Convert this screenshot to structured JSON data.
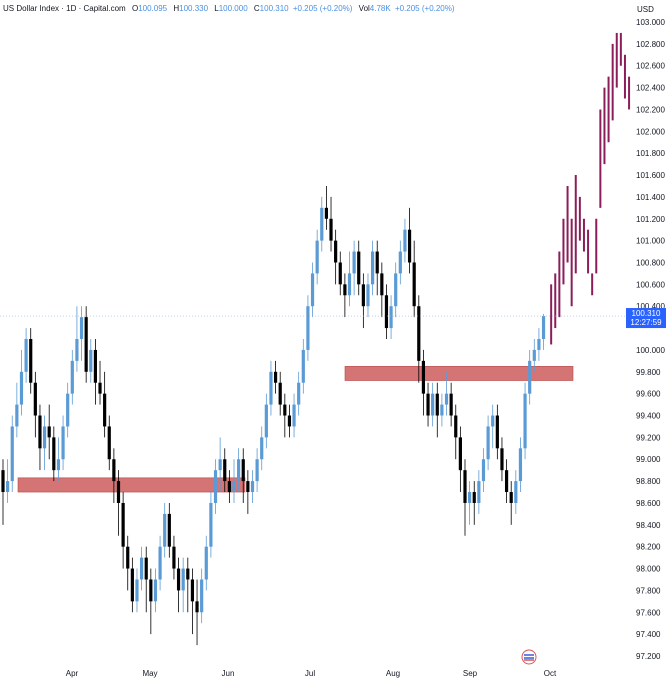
{
  "legend": {
    "symbol": "US Dollar Index · 1D · Capital.com",
    "open_label": "O",
    "open": "100.095",
    "high_label": "H",
    "high": "100.330",
    "low_label": "L",
    "low": "100.000",
    "close_label": "C",
    "close": "100.310",
    "change": "+0.205 (+0.20%)",
    "vol_label": "Vol",
    "vol": "4.78K",
    "vol_change": "+0.205 (+0.20%)"
  },
  "chart_data": {
    "type": "candlestick",
    "title": "",
    "currency": "USD",
    "ylim": [
      97.2,
      103.0
    ],
    "y_ticks": [
      "103.000",
      "102.800",
      "102.600",
      "102.400",
      "102.200",
      "102.000",
      "101.800",
      "101.600",
      "101.400",
      "101.200",
      "101.000",
      "100.800",
      "100.600",
      "100.400",
      "100.000",
      "99.800",
      "99.600",
      "99.400",
      "99.200",
      "99.000",
      "98.800",
      "98.600",
      "98.400",
      "98.200",
      "98.000",
      "97.800",
      "97.600",
      "97.400",
      "97.200"
    ],
    "x_ticks": [
      "Apr",
      "May",
      "Jun",
      "Jul",
      "Aug",
      "Sep",
      "Oct"
    ],
    "last_price": "100.310",
    "countdown": "12:27:59",
    "colors": {
      "up": "#5b9bd5",
      "down": "#000000",
      "projection": "#8b1e5a",
      "zone": "#cd5c5c",
      "price_label": "#2962ff"
    },
    "zones": [
      {
        "low": 98.7,
        "high": 98.83,
        "from": "Mar 4",
        "to": "Jun 3"
      },
      {
        "low": 99.72,
        "high": 99.85,
        "from": "Jul 16",
        "to": "Sep 30"
      }
    ],
    "candles": [
      [
        98.9,
        98.7,
        99.0,
        98.4
      ],
      [
        98.7,
        98.8,
        99.0,
        98.6
      ],
      [
        98.8,
        99.3,
        99.4,
        98.7
      ],
      [
        99.3,
        99.5,
        99.7,
        99.2
      ],
      [
        99.5,
        99.8,
        100.0,
        99.4
      ],
      [
        99.8,
        100.1,
        100.2,
        99.7
      ],
      [
        100.1,
        99.7,
        100.2,
        99.6
      ],
      [
        99.7,
        99.4,
        99.8,
        99.2
      ],
      [
        99.4,
        99.1,
        99.5,
        98.9
      ],
      [
        99.1,
        99.3,
        99.4,
        98.9
      ],
      [
        99.3,
        99.2,
        99.5,
        99.0
      ],
      [
        99.2,
        98.9,
        99.3,
        98.8
      ],
      [
        98.9,
        99.0,
        99.2,
        98.8
      ],
      [
        99.0,
        99.3,
        99.4,
        98.9
      ],
      [
        99.3,
        99.6,
        99.7,
        99.2
      ],
      [
        99.6,
        99.9,
        100.0,
        99.5
      ],
      [
        99.9,
        100.1,
        100.4,
        99.8
      ],
      [
        100.1,
        100.3,
        100.4,
        99.9
      ],
      [
        100.3,
        99.8,
        100.4,
        99.7
      ],
      [
        99.8,
        100.0,
        100.1,
        99.7
      ],
      [
        100.0,
        99.7,
        100.1,
        99.5
      ],
      [
        99.7,
        99.6,
        99.9,
        99.5
      ],
      [
        99.6,
        99.3,
        99.8,
        99.2
      ],
      [
        99.3,
        99.0,
        99.4,
        98.9
      ],
      [
        99.0,
        98.8,
        99.1,
        98.6
      ],
      [
        98.8,
        98.6,
        98.9,
        98.3
      ],
      [
        98.6,
        98.2,
        98.7,
        98.0
      ],
      [
        98.2,
        98.0,
        98.3,
        97.8
      ],
      [
        98.0,
        97.7,
        98.1,
        97.6
      ],
      [
        97.7,
        97.9,
        98.0,
        97.6
      ],
      [
        97.9,
        98.1,
        98.2,
        97.8
      ],
      [
        98.1,
        97.9,
        98.2,
        97.6
      ],
      [
        97.9,
        97.7,
        98.0,
        97.4
      ],
      [
        97.7,
        97.9,
        98.0,
        97.6
      ],
      [
        97.9,
        98.2,
        98.3,
        97.8
      ],
      [
        98.2,
        98.5,
        98.6,
        98.1
      ],
      [
        98.5,
        98.2,
        98.6,
        98.1
      ],
      [
        98.2,
        98.0,
        98.3,
        97.9
      ],
      [
        98.0,
        97.8,
        98.1,
        97.6
      ],
      [
        97.8,
        98.0,
        98.1,
        97.6
      ],
      [
        98.0,
        97.9,
        98.1,
        97.6
      ],
      [
        97.9,
        97.7,
        98.0,
        97.4
      ],
      [
        97.7,
        97.6,
        97.9,
        97.3
      ],
      [
        97.6,
        97.9,
        98.0,
        97.5
      ],
      [
        97.9,
        98.2,
        98.3,
        97.8
      ],
      [
        98.2,
        98.6,
        98.7,
        98.1
      ],
      [
        98.6,
        98.9,
        99.0,
        98.5
      ],
      [
        98.9,
        99.0,
        99.2,
        98.7
      ],
      [
        99.0,
        98.8,
        99.1,
        98.7
      ],
      [
        98.8,
        98.7,
        98.9,
        98.6
      ],
      [
        98.7,
        98.8,
        99.0,
        98.6
      ],
      [
        98.8,
        99.0,
        99.1,
        98.7
      ],
      [
        99.0,
        98.8,
        99.1,
        98.6
      ],
      [
        98.8,
        98.7,
        98.9,
        98.5
      ],
      [
        98.7,
        98.8,
        98.9,
        98.6
      ],
      [
        98.8,
        99.0,
        99.1,
        98.7
      ],
      [
        99.0,
        99.2,
        99.3,
        98.9
      ],
      [
        99.2,
        99.5,
        99.6,
        99.1
      ],
      [
        99.5,
        99.8,
        99.9,
        99.4
      ],
      [
        99.8,
        99.7,
        99.9,
        99.6
      ],
      [
        99.7,
        99.5,
        99.8,
        99.4
      ],
      [
        99.5,
        99.4,
        99.6,
        99.2
      ],
      [
        99.4,
        99.3,
        99.5,
        99.2
      ],
      [
        99.3,
        99.5,
        99.6,
        99.2
      ],
      [
        99.5,
        99.7,
        99.8,
        99.4
      ],
      [
        99.7,
        100.0,
        100.1,
        99.6
      ],
      [
        100.0,
        100.4,
        100.5,
        99.9
      ],
      [
        100.4,
        100.7,
        100.8,
        100.3
      ],
      [
        100.7,
        101.0,
        101.1,
        100.6
      ],
      [
        101.0,
        101.3,
        101.4,
        100.9
      ],
      [
        101.3,
        101.2,
        101.5,
        101.1
      ],
      [
        101.2,
        101.0,
        101.4,
        100.9
      ],
      [
        101.0,
        100.8,
        101.1,
        100.6
      ],
      [
        100.8,
        100.6,
        100.9,
        100.5
      ],
      [
        100.6,
        100.5,
        100.7,
        100.3
      ],
      [
        100.5,
        100.7,
        100.9,
        100.4
      ],
      [
        100.7,
        100.9,
        101.0,
        100.5
      ],
      [
        100.9,
        100.6,
        101.0,
        100.5
      ],
      [
        100.6,
        100.4,
        100.7,
        100.2
      ],
      [
        100.4,
        100.6,
        100.7,
        100.3
      ],
      [
        100.6,
        100.9,
        101.0,
        100.5
      ],
      [
        100.9,
        100.7,
        101.0,
        100.5
      ],
      [
        100.7,
        100.5,
        100.8,
        100.3
      ],
      [
        100.5,
        100.2,
        100.6,
        100.1
      ],
      [
        100.2,
        100.4,
        100.5,
        100.1
      ],
      [
        100.4,
        100.7,
        100.8,
        100.3
      ],
      [
        100.7,
        100.9,
        101.0,
        100.6
      ],
      [
        100.9,
        101.1,
        101.2,
        100.8
      ],
      [
        101.1,
        100.8,
        101.3,
        100.7
      ],
      [
        100.8,
        100.4,
        101.0,
        100.3
      ],
      [
        100.4,
        99.9,
        100.5,
        99.7
      ],
      [
        99.9,
        99.6,
        100.0,
        99.4
      ],
      [
        99.6,
        99.4,
        99.7,
        99.3
      ],
      [
        99.4,
        99.6,
        99.7,
        99.3
      ],
      [
        99.6,
        99.4,
        99.7,
        99.2
      ],
      [
        99.4,
        99.5,
        99.6,
        99.3
      ],
      [
        99.5,
        99.6,
        99.8,
        99.4
      ],
      [
        99.6,
        99.4,
        99.7,
        99.3
      ],
      [
        99.4,
        99.2,
        99.5,
        99.0
      ],
      [
        99.2,
        98.9,
        99.3,
        98.7
      ],
      [
        98.9,
        98.6,
        99.0,
        98.3
      ],
      [
        98.6,
        98.7,
        98.8,
        98.4
      ],
      [
        98.7,
        98.6,
        98.8,
        98.4
      ],
      [
        98.6,
        98.8,
        98.9,
        98.5
      ],
      [
        98.8,
        99.0,
        99.1,
        98.7
      ],
      [
        99.0,
        99.3,
        99.4,
        98.9
      ],
      [
        99.3,
        99.4,
        99.5,
        99.1
      ],
      [
        99.4,
        99.1,
        99.5,
        99.0
      ],
      [
        99.1,
        98.9,
        99.2,
        98.8
      ],
      [
        98.9,
        98.7,
        99.0,
        98.6
      ],
      [
        98.7,
        98.6,
        98.8,
        98.4
      ],
      [
        98.6,
        98.8,
        98.9,
        98.5
      ],
      [
        98.8,
        99.1,
        99.2,
        98.7
      ],
      [
        99.1,
        99.6,
        99.7,
        99.0
      ],
      [
        99.6,
        99.9,
        100.0,
        99.5
      ],
      [
        99.9,
        100.0,
        100.1,
        99.8
      ],
      [
        100.0,
        100.1,
        100.2,
        99.9
      ],
      [
        100.1,
        100.31,
        100.33,
        100.0
      ]
    ],
    "projection_bars": [
      [
        100.05,
        100.6
      ],
      [
        100.2,
        100.7
      ],
      [
        100.3,
        100.9
      ],
      [
        100.6,
        101.2
      ],
      [
        100.8,
        101.5
      ],
      [
        100.4,
        101.2
      ],
      [
        100.7,
        101.6
      ],
      [
        101.0,
        101.4
      ],
      [
        100.9,
        101.2
      ],
      [
        100.7,
        101.1
      ],
      [
        100.5,
        100.7
      ],
      [
        100.7,
        101.2
      ],
      [
        101.3,
        102.2
      ],
      [
        101.7,
        102.4
      ],
      [
        101.9,
        102.5
      ],
      [
        102.1,
        102.8
      ],
      [
        102.4,
        102.9
      ],
      [
        102.6,
        102.9
      ],
      [
        102.3,
        102.7
      ],
      [
        102.2,
        102.5
      ]
    ]
  }
}
